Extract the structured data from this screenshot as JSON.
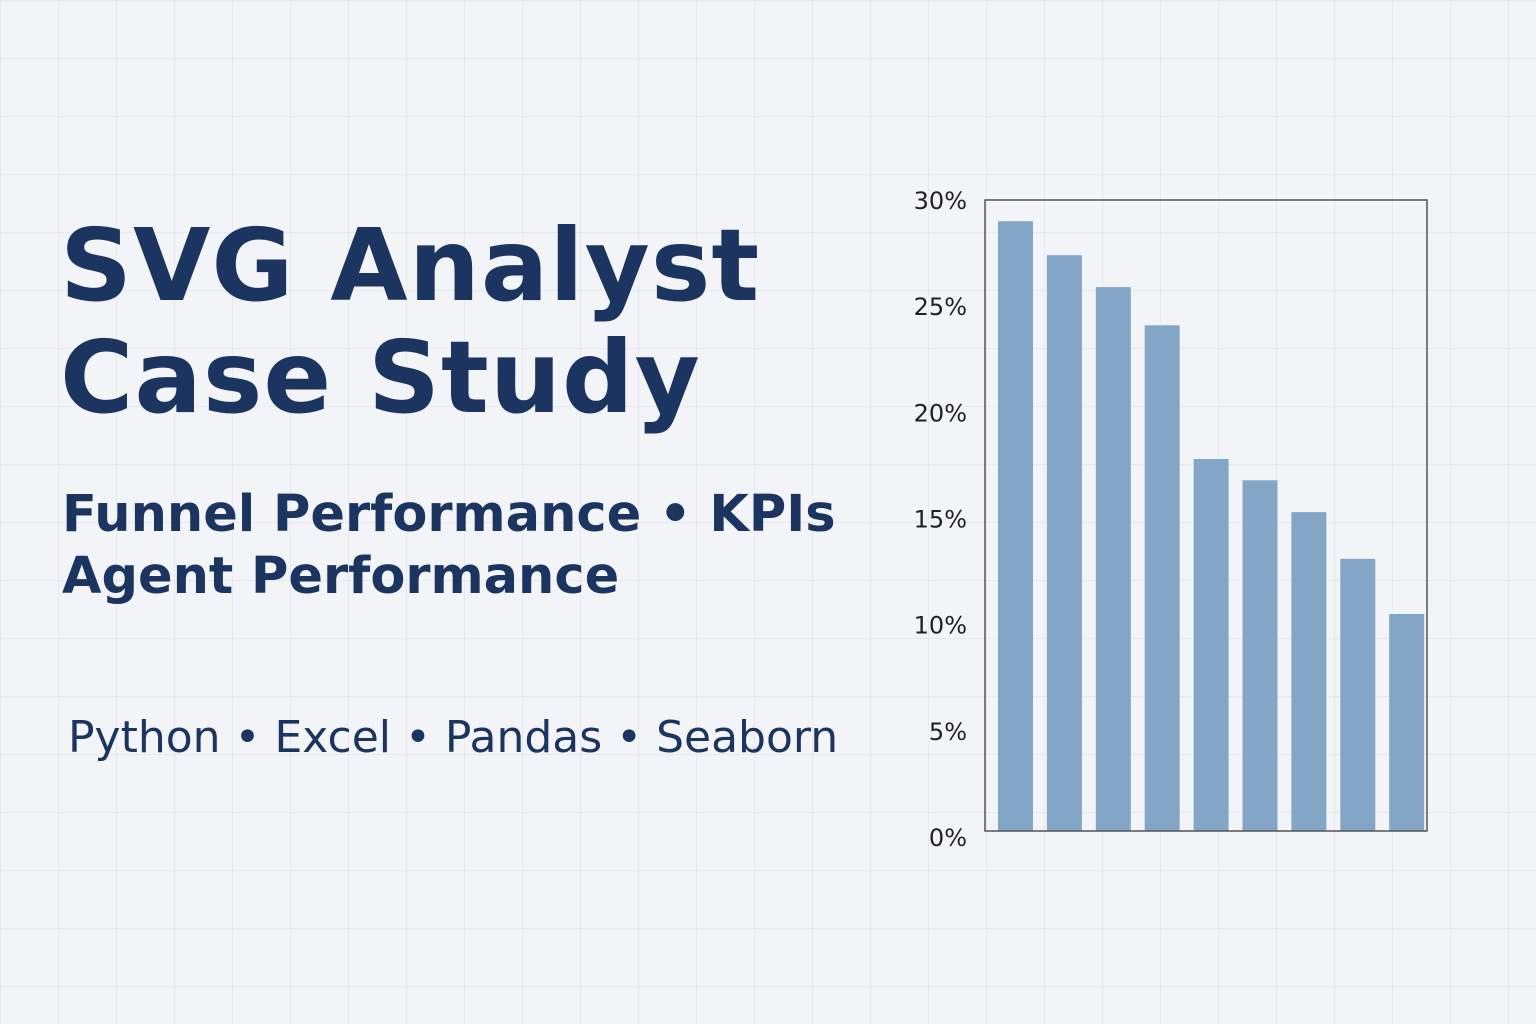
{
  "headline": {
    "line1": "SVG Analyst",
    "line2": "Case Study"
  },
  "subheadline": {
    "line1": "Funnel Performance • KPIs",
    "line2": "Agent Performance"
  },
  "tools": "Python • Excel • Pandas • Seaborn",
  "colors": {
    "text": "#1b3560",
    "bar": "#84a6c6",
    "axis": "#555555",
    "background": "#f3f4f7"
  },
  "chart_data": {
    "type": "bar",
    "values": [
      29,
      27.4,
      25.9,
      24.1,
      17.8,
      16.8,
      15.3,
      13.1,
      10.5
    ],
    "ylim": [
      0,
      30
    ],
    "yticks": [
      "0%",
      "5%",
      "10%",
      "15%",
      "20%",
      "25%",
      "30%"
    ],
    "ytick_values": [
      0,
      5,
      10,
      15,
      20,
      25,
      30
    ],
    "grid": false,
    "legend": "none"
  }
}
